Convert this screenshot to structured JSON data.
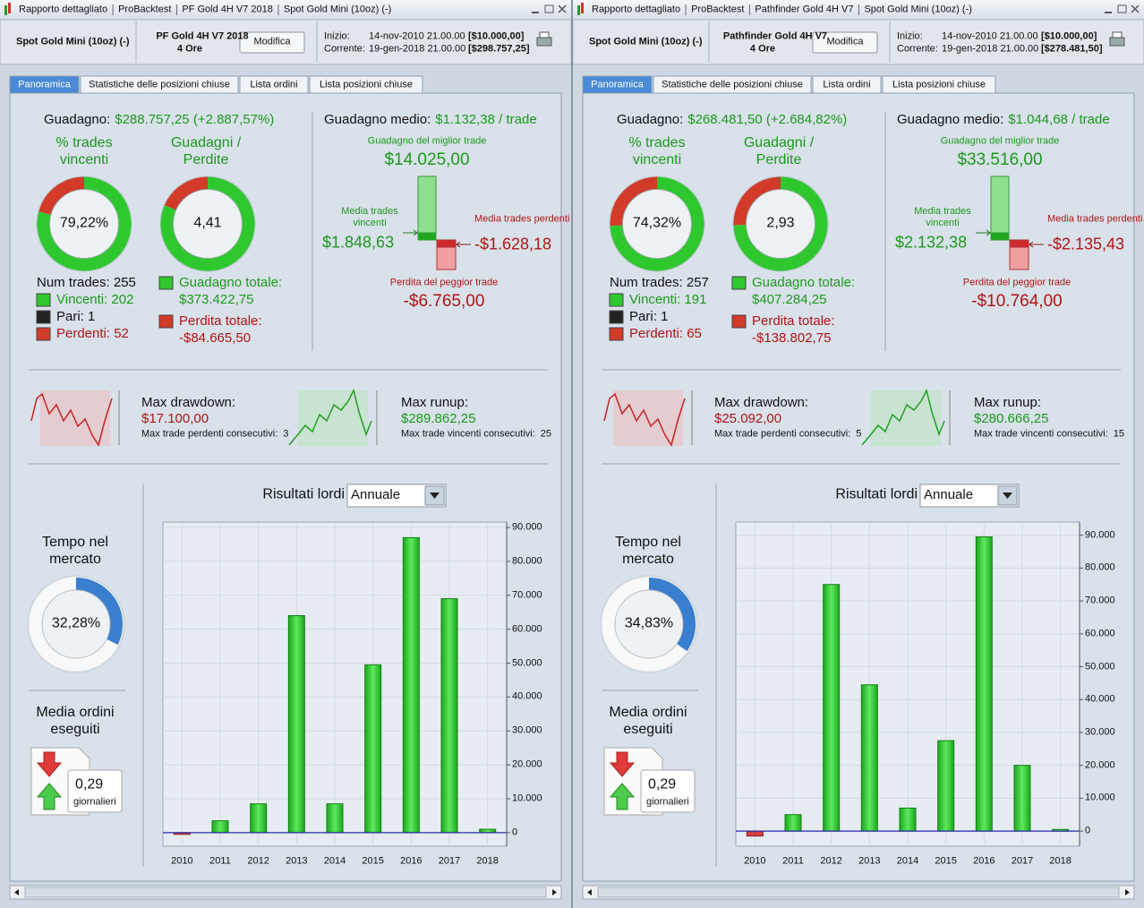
{
  "panels": [
    {
      "title_bar": [
        "Rapporto dettagliato",
        "ProBacktest",
        "PF Gold 4H V7 2018",
        "Spot Gold Mini (10oz) (-)"
      ],
      "header": {
        "instrument": "Spot Gold Mini (10oz) (-)",
        "system": "PF Gold 4H V7 2018",
        "timeframe": "4 Ore",
        "button": "Modifica",
        "start_label": "Inizio:",
        "start_date": "14-nov-2010 21.00.00",
        "start_capital": "[$10.000,00]",
        "current_label": "Corrente:",
        "current_date": "19-gen-2018 21.00.00",
        "current_capital": "[$298.757,25]"
      },
      "tabs": [
        "Panoramica",
        "Statistiche delle posizioni chiuse",
        "Lista ordini",
        "Lista posizioni chiuse"
      ],
      "gain": {
        "label": "Guadagno:",
        "value": "$288.757,25 (+2.887,57%)"
      },
      "win_rate": {
        "title": "% trades vincenti",
        "value": 79.22,
        "label": "79,22%"
      },
      "gain_loss": {
        "title": "Guadagni / Perdite",
        "value": 4.41,
        "label": "4,41"
      },
      "trades": {
        "total": "Num trades: 255",
        "winners": "Vincenti: 202",
        "even": "Pari: 1",
        "losers": "Perdenti: 52"
      },
      "totals": {
        "gain_label": "Guadagno totale:",
        "gain": "$373.422,75",
        "loss_label": "Perdita totale:",
        "loss": "-$84.665,50"
      },
      "avg": {
        "label": "Guadagno medio:",
        "value": "$1.132,38 / trade"
      },
      "trade_range": {
        "best_label": "Guadagno del miglior trade",
        "best": "$14.025,00",
        "avg_win_label": "Media trades vincenti",
        "avg_win": "$1.848,63",
        "avg_loss_label": "Media trades perdenti",
        "avg_loss": "-$1.628,18",
        "worst_label": "Perdita del peggior trade",
        "worst": "-$6.765,00"
      },
      "drawdown": {
        "label": "Max drawdown:",
        "value": "$17.100,00",
        "consec_label": "Max trade perdenti consecutivi:",
        "consec": "3"
      },
      "runup": {
        "label": "Max runup:",
        "value": "$289.862,25",
        "consec_label": "Max trade vincenti consecutivi:",
        "consec": "25"
      },
      "results": {
        "type": "bar",
        "title": "Risultati lordi",
        "period": "Annuale",
        "categories": [
          "2010",
          "2011",
          "2012",
          "2013",
          "2014",
          "2015",
          "2016",
          "2017",
          "2018"
        ],
        "values": [
          -500,
          3500,
          8500,
          64000,
          8500,
          49500,
          87000,
          69000,
          1000
        ],
        "color": "#22c322",
        "negative_color": "#d04040",
        "ylim": [
          -4000,
          91600
        ],
        "yticks": [
          0,
          {
            "value": 10000,
            "label": "10.000"
          },
          {
            "value": 20000,
            "label": "20.000"
          },
          {
            "value": 30000,
            "label": "30.000"
          },
          {
            "value": 40000,
            "label": "40.000"
          },
          {
            "value": 50000,
            "label": "50.000"
          },
          {
            "value": 60000,
            "label": "60.000"
          },
          {
            "value": 70000,
            "label": "70.000"
          },
          {
            "value": 80000,
            "label": "80.000"
          },
          {
            "value": 90000,
            "label": "90.000"
          }
        ],
        "grid": true
      },
      "market_time": {
        "title": "Tempo nel mercato",
        "value": 32.28,
        "label": "32,28%"
      },
      "orders": {
        "title": "Media ordini eseguiti",
        "value": "0,29",
        "unit": "giornalieri"
      }
    },
    {
      "title_bar": [
        "Rapporto dettagliato",
        "ProBacktest",
        "Pathfinder Gold 4H V7",
        "Spot Gold Mini (10oz) (-)"
      ],
      "header": {
        "instrument": "Spot Gold Mini (10oz) (-)",
        "system": "Pathfinder Gold 4H V7",
        "timeframe": "4 Ore",
        "button": "Modifica",
        "start_label": "Inizio:",
        "start_date": "14-nov-2010 21.00.00",
        "start_capital": "[$10.000,00]",
        "current_label": "Corrente:",
        "current_date": "19-gen-2018 21.00.00",
        "current_capital": "[$278.481,50]"
      },
      "tabs": [
        "Panoramica",
        "Statistiche delle posizioni chiuse",
        "Lista ordini",
        "Lista posizioni chiuse"
      ],
      "gain": {
        "label": "Guadagno:",
        "value": "$268.481,50 (+2.684,82%)"
      },
      "win_rate": {
        "title": "% trades vincenti",
        "value": 74.32,
        "label": "74,32%"
      },
      "gain_loss": {
        "title": "Guadagni / Perdite",
        "value": 2.93,
        "label": "2,93"
      },
      "trades": {
        "total": "Num trades: 257",
        "winners": "Vincenti: 191",
        "even": "Pari: 1",
        "losers": "Perdenti: 65"
      },
      "totals": {
        "gain_label": "Guadagno totale:",
        "gain": "$407.284,25",
        "loss_label": "Perdita totale:",
        "loss": "-$138.802,75"
      },
      "avg": {
        "label": "Guadagno medio:",
        "value": "$1.044,68 / trade"
      },
      "trade_range": {
        "best_label": "Guadagno del miglior trade",
        "best": "$33.516,00",
        "avg_win_label": "Media trades vincenti",
        "avg_win": "$2.132,38",
        "avg_loss_label": "Media trades perdenti",
        "avg_loss": "-$2.135,43",
        "worst_label": "Perdita del peggior trade",
        "worst": "-$10.764,00"
      },
      "drawdown": {
        "label": "Max drawdown:",
        "value": "$25.092,00",
        "consec_label": "Max trade perdenti consecutivi:",
        "consec": "5"
      },
      "runup": {
        "label": "Max runup:",
        "value": "$280.666,25",
        "consec_label": "Max trade vincenti consecutivi:",
        "consec": "15"
      },
      "results": {
        "type": "bar",
        "title": "Risultati lordi",
        "period": "Annuale",
        "categories": [
          "2010",
          "2011",
          "2012",
          "2013",
          "2014",
          "2015",
          "2016",
          "2017",
          "2018"
        ],
        "values": [
          -1500,
          5000,
          75000,
          44500,
          7000,
          27500,
          89500,
          20000,
          500
        ],
        "color": "#22c322",
        "negative_color": "#d04040",
        "ylim": [
          -4600,
          94000
        ],
        "yticks": [
          0,
          {
            "value": 10000,
            "label": "10.000"
          },
          {
            "value": 20000,
            "label": "20.000"
          },
          {
            "value": 30000,
            "label": "30.000"
          },
          {
            "value": 40000,
            "label": "40.000"
          },
          {
            "value": 50000,
            "label": "50.000"
          },
          {
            "value": 60000,
            "label": "60.000"
          },
          {
            "value": 70000,
            "label": "70.000"
          },
          {
            "value": 80000,
            "label": "80.000"
          },
          {
            "value": 90000,
            "label": "90.000"
          }
        ],
        "grid": true
      },
      "market_time": {
        "title": "Tempo nel mercato",
        "value": 34.83,
        "label": "34,83%"
      },
      "orders": {
        "title": "Media ordini eseguiti",
        "value": "0,29",
        "unit": "giornalieri"
      }
    }
  ]
}
